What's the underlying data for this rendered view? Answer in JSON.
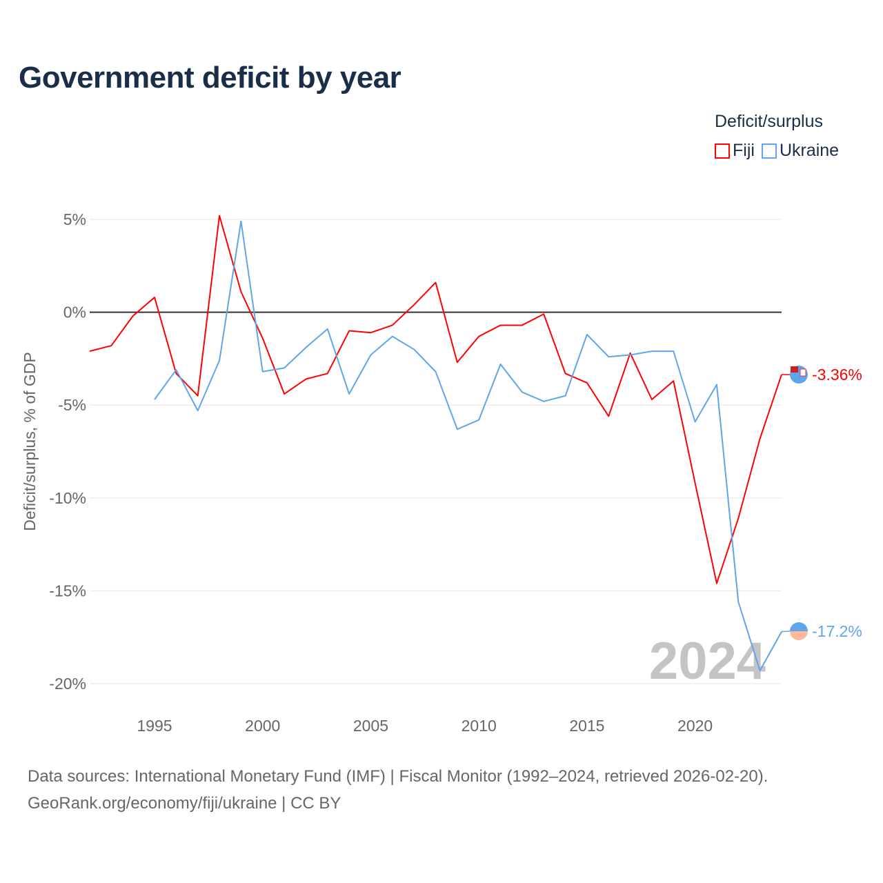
{
  "title": "Government deficit by year",
  "legend": {
    "title": "Deficit/surplus",
    "items": [
      {
        "label": "Fiji",
        "color": "#ff0000"
      },
      {
        "label": "Ukraine",
        "color": "#5ea5ea"
      }
    ]
  },
  "source": {
    "line1": "Data sources: International Monetary Fund (IMF) | Fiscal Monitor (1992–2024, retrieved 2026-02-20).",
    "line2": "GeoRank.org/economy/fiji/ukraine | CC BY"
  },
  "chart_data": {
    "type": "line",
    "title": "Government deficit by year",
    "xlabel": "",
    "ylabel": "Deficit/surplus, % of GDP",
    "xlim": [
      1992,
      2024
    ],
    "ylim": [
      -21,
      5.5
    ],
    "xticks": [
      1995,
      2000,
      2005,
      2010,
      2015,
      2020
    ],
    "xtick_labels": [
      "1995",
      "2000",
      "2005",
      "2010",
      "2015",
      "2020"
    ],
    "yticks": [
      5,
      0,
      -5,
      -10,
      -15,
      -20
    ],
    "ytick_labels": [
      "5%",
      "0%",
      "-5%",
      "-10%",
      "-15%",
      "-20%"
    ],
    "grid": true,
    "legend_position": "top-right",
    "watermark_year": "2024",
    "series": [
      {
        "name": "Fiji",
        "color": "#ff0000",
        "end_label": "-3.36%",
        "x": [
          1992,
          1993,
          1994,
          1995,
          1996,
          1997,
          1998,
          1999,
          2000,
          2001,
          2002,
          2003,
          2004,
          2005,
          2006,
          2007,
          2008,
          2009,
          2010,
          2011,
          2012,
          2013,
          2014,
          2015,
          2016,
          2017,
          2018,
          2019,
          2020,
          2021,
          2022,
          2023,
          2024
        ],
        "values": [
          -2.1,
          -1.8,
          -0.2,
          0.8,
          -3.3,
          -4.5,
          5.2,
          1.1,
          -1.4,
          -4.4,
          -3.6,
          -3.3,
          -1.0,
          -1.1,
          -0.7,
          0.4,
          1.6,
          -2.7,
          -1.3,
          -0.7,
          -0.7,
          -0.1,
          -3.3,
          -3.8,
          -5.6,
          -2.2,
          -4.7,
          -3.7,
          -9.2,
          -14.6,
          -11.1,
          -6.8,
          -3.36
        ]
      },
      {
        "name": "Ukraine",
        "color": "#5ea5ea",
        "end_label": "-17.2%",
        "x": [
          1995,
          1996,
          1997,
          1998,
          1999,
          2000,
          2001,
          2002,
          2003,
          2004,
          2005,
          2006,
          2007,
          2008,
          2009,
          2010,
          2011,
          2012,
          2013,
          2014,
          2015,
          2016,
          2017,
          2018,
          2019,
          2020,
          2021,
          2022,
          2023,
          2024
        ],
        "values": [
          -4.7,
          -3.1,
          -5.3,
          -2.6,
          4.9,
          -3.2,
          -3.0,
          -1.9,
          -0.9,
          -4.4,
          -2.3,
          -1.3,
          -2.0,
          -3.2,
          -6.3,
          -5.8,
          -2.8,
          -4.3,
          -4.8,
          -4.5,
          -1.2,
          -2.4,
          -2.3,
          -2.1,
          -2.1,
          -5.9,
          -3.9,
          -15.6,
          -19.3,
          -17.2
        ]
      }
    ]
  }
}
